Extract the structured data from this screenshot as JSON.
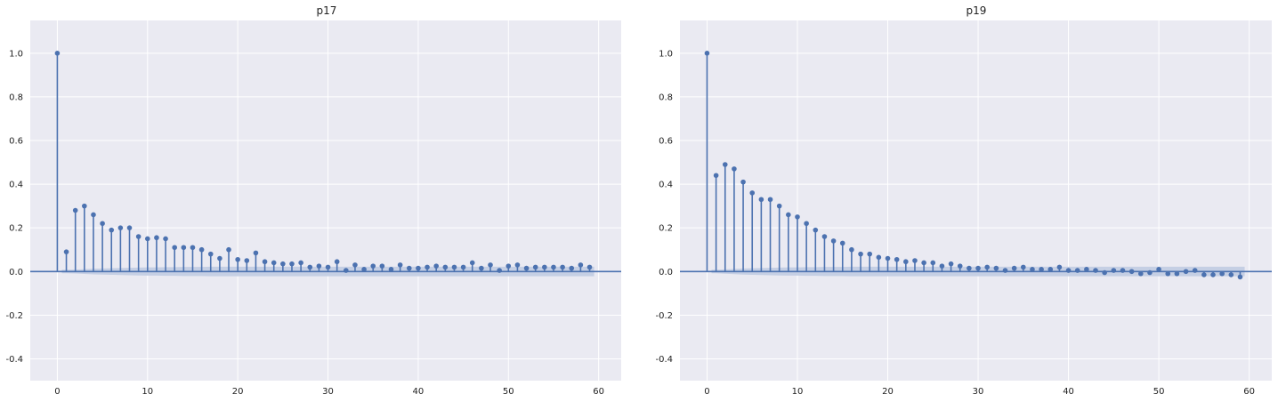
{
  "chart_data": [
    {
      "type": "stem",
      "title": "p17",
      "xlabel": "",
      "ylabel": "",
      "xlim": [
        -3,
        62.5
      ],
      "ylim": [
        -0.5,
        1.15
      ],
      "xticks": [
        0,
        10,
        20,
        30,
        40,
        50,
        60
      ],
      "yticks": [
        -0.4,
        -0.2,
        0.0,
        0.2,
        0.4,
        0.6,
        0.8,
        1.0
      ],
      "grid": true,
      "lags": [
        0,
        1,
        2,
        3,
        4,
        5,
        6,
        7,
        8,
        9,
        10,
        11,
        12,
        13,
        14,
        15,
        16,
        17,
        18,
        19,
        20,
        21,
        22,
        23,
        24,
        25,
        26,
        27,
        28,
        29,
        30,
        31,
        32,
        33,
        34,
        35,
        36,
        37,
        38,
        39,
        40,
        41,
        42,
        43,
        44,
        45,
        46,
        47,
        48,
        49,
        50,
        51,
        52,
        53,
        54,
        55,
        56,
        57,
        58,
        59
      ],
      "values": [
        1.0,
        0.09,
        0.28,
        0.3,
        0.26,
        0.22,
        0.19,
        0.2,
        0.2,
        0.16,
        0.15,
        0.155,
        0.15,
        0.11,
        0.11,
        0.11,
        0.1,
        0.08,
        0.06,
        0.1,
        0.055,
        0.05,
        0.085,
        0.045,
        0.04,
        0.035,
        0.035,
        0.04,
        0.02,
        0.025,
        0.02,
        0.045,
        0.005,
        0.03,
        0.01,
        0.025,
        0.025,
        0.01,
        0.03,
        0.015,
        0.015,
        0.02,
        0.025,
        0.02,
        0.02,
        0.02,
        0.04,
        0.015,
        0.03,
        0.005,
        0.025,
        0.03,
        0.015,
        0.02,
        0.02,
        0.02,
        0.02,
        0.015,
        0.03,
        0.02
      ],
      "confint_halfwidth": [
        0.008,
        0.009,
        0.011,
        0.013,
        0.014,
        0.015,
        0.016,
        0.017,
        0.018,
        0.019,
        0.019,
        0.02,
        0.02,
        0.021,
        0.021,
        0.021,
        0.022,
        0.022,
        0.022,
        0.022,
        0.022,
        0.022,
        0.022,
        0.022,
        0.022,
        0.022,
        0.022,
        0.022,
        0.022,
        0.022,
        0.022,
        0.022,
        0.022,
        0.022,
        0.022,
        0.022,
        0.022,
        0.022,
        0.022,
        0.022,
        0.022,
        0.022,
        0.022,
        0.022,
        0.022,
        0.022,
        0.022,
        0.022,
        0.022,
        0.022,
        0.022,
        0.022,
        0.022,
        0.022,
        0.022,
        0.022,
        0.022,
        0.022,
        0.022
      ],
      "colors": {
        "stem": "#4c72b0",
        "band": "#c5cfe4",
        "background": "#eaeaf2",
        "grid": "#ffffff"
      }
    },
    {
      "type": "stem",
      "title": "p19",
      "xlabel": "",
      "ylabel": "",
      "xlim": [
        -3,
        62.5
      ],
      "ylim": [
        -0.5,
        1.15
      ],
      "xticks": [
        0,
        10,
        20,
        30,
        40,
        50,
        60
      ],
      "yticks": [
        -0.4,
        -0.2,
        0.0,
        0.2,
        0.4,
        0.6,
        0.8,
        1.0
      ],
      "grid": true,
      "lags": [
        0,
        1,
        2,
        3,
        4,
        5,
        6,
        7,
        8,
        9,
        10,
        11,
        12,
        13,
        14,
        15,
        16,
        17,
        18,
        19,
        20,
        21,
        22,
        23,
        24,
        25,
        26,
        27,
        28,
        29,
        30,
        31,
        32,
        33,
        34,
        35,
        36,
        37,
        38,
        39,
        40,
        41,
        42,
        43,
        44,
        45,
        46,
        47,
        48,
        49,
        50,
        51,
        52,
        53,
        54,
        55,
        56,
        57,
        58,
        59
      ],
      "values": [
        1.0,
        0.44,
        0.49,
        0.47,
        0.41,
        0.36,
        0.33,
        0.33,
        0.3,
        0.26,
        0.25,
        0.22,
        0.19,
        0.16,
        0.14,
        0.13,
        0.1,
        0.08,
        0.08,
        0.065,
        0.06,
        0.055,
        0.045,
        0.05,
        0.04,
        0.04,
        0.025,
        0.035,
        0.025,
        0.015,
        0.015,
        0.02,
        0.015,
        0.005,
        0.015,
        0.02,
        0.01,
        0.01,
        0.01,
        0.02,
        0.005,
        0.005,
        0.01,
        0.005,
        -0.005,
        0.005,
        0.005,
        0.0,
        -0.01,
        -0.005,
        0.01,
        -0.01,
        -0.01,
        0.0,
        0.005,
        -0.015,
        -0.015,
        -0.01,
        -0.015,
        -0.025
      ],
      "confint_halfwidth": [
        0.008,
        0.01,
        0.012,
        0.014,
        0.015,
        0.016,
        0.017,
        0.018,
        0.019,
        0.019,
        0.02,
        0.02,
        0.021,
        0.021,
        0.021,
        0.022,
        0.022,
        0.022,
        0.022,
        0.022,
        0.022,
        0.022,
        0.022,
        0.022,
        0.022,
        0.022,
        0.022,
        0.022,
        0.022,
        0.022,
        0.022,
        0.022,
        0.022,
        0.022,
        0.022,
        0.022,
        0.022,
        0.022,
        0.022,
        0.022,
        0.022,
        0.022,
        0.022,
        0.022,
        0.022,
        0.022,
        0.022,
        0.022,
        0.022,
        0.022,
        0.022,
        0.022,
        0.022,
        0.022,
        0.022,
        0.022,
        0.022,
        0.022,
        0.022
      ],
      "colors": {
        "stem": "#4c72b0",
        "band": "#c5cfe4",
        "background": "#eaeaf2",
        "grid": "#ffffff"
      }
    }
  ]
}
